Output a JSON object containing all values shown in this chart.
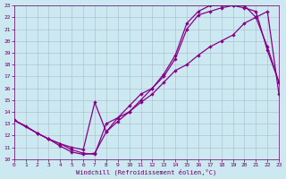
{
  "xlabel": "Windchill (Refroidissement éolien,°C)",
  "line_color": "#880088",
  "bg_color": "#cce8f0",
  "grid_color": "#aabbcc",
  "xlim": [
    0,
    23
  ],
  "ylim": [
    10,
    23
  ],
  "yticks": [
    10,
    11,
    12,
    13,
    14,
    15,
    16,
    17,
    18,
    19,
    20,
    21,
    22,
    23
  ],
  "xticks": [
    0,
    1,
    2,
    3,
    4,
    5,
    6,
    7,
    8,
    9,
    10,
    11,
    12,
    13,
    14,
    15,
    16,
    17,
    18,
    19,
    20,
    21,
    22,
    23
  ],
  "line1_x": [
    0,
    1,
    2,
    3,
    4,
    5,
    6,
    7,
    8,
    9,
    10,
    11,
    12,
    13,
    14,
    15,
    16,
    17,
    18,
    19,
    20,
    21,
    22,
    23
  ],
  "line1_y": [
    13.3,
    12.8,
    12.2,
    11.7,
    11.1,
    10.6,
    10.4,
    10.5,
    12.3,
    13.2,
    14.0,
    14.8,
    15.5,
    16.5,
    17.5,
    18.0,
    18.8,
    19.5,
    20.0,
    20.5,
    21.5,
    22.0,
    22.5,
    15.5
  ],
  "line2_x": [
    0,
    2,
    3,
    4,
    5,
    6,
    7,
    8,
    9,
    10,
    11,
    12,
    13,
    14,
    15,
    16,
    17,
    18,
    19,
    20,
    21,
    22,
    23
  ],
  "line2_y": [
    13.3,
    12.2,
    11.7,
    11.3,
    11.0,
    10.8,
    14.8,
    12.3,
    13.5,
    14.5,
    15.5,
    16.0,
    17.0,
    18.5,
    21.0,
    22.2,
    22.5,
    22.8,
    23.0,
    23.0,
    22.0,
    19.5,
    16.5
  ],
  "line3_x": [
    0,
    2,
    3,
    4,
    5,
    6,
    7,
    8,
    9,
    10,
    11,
    12,
    13,
    14,
    15,
    16,
    17,
    18,
    19,
    20,
    21,
    22,
    23
  ],
  "line3_y": [
    13.3,
    12.2,
    11.7,
    11.3,
    10.8,
    10.5,
    10.4,
    13.0,
    13.5,
    14.0,
    15.0,
    16.0,
    17.2,
    18.8,
    21.5,
    22.5,
    23.0,
    23.0,
    23.0,
    22.8,
    22.5,
    19.2,
    16.5
  ]
}
